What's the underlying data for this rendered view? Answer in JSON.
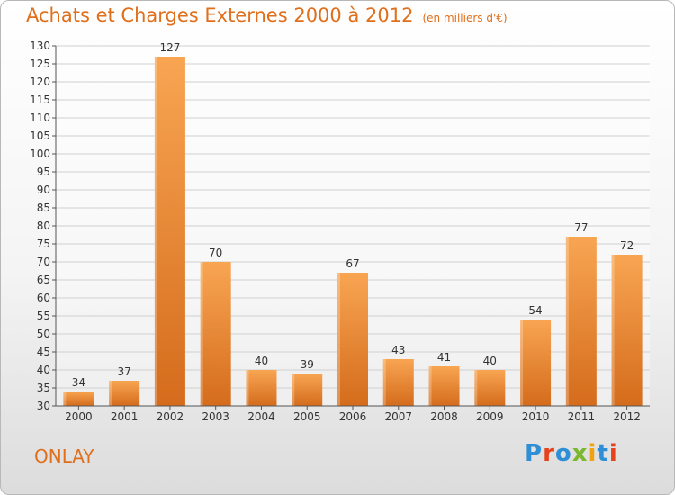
{
  "header": {
    "title": "Achats et Charges Externes 2000 à 2012",
    "subtitle": "(en milliers d'€)"
  },
  "footer": {
    "city": "ONLAY",
    "logo_text": "Proxiti",
    "logo_colors": [
      "#2f8fd6",
      "#e6431c",
      "#2f8fd6",
      "#7cb82f",
      "#f2a20f",
      "#2f8fd6",
      "#e6431c"
    ]
  },
  "colors": {
    "bar_light": "#f7a550",
    "bar_dark": "#d8701e",
    "text": "#e06f1c",
    "grid": "#d0d0d0"
  },
  "chart_data": {
    "type": "bar",
    "title": "Achats et Charges Externes 2000 à 2012",
    "subtitle": "(en milliers d'€)",
    "categories": [
      "2000",
      "2001",
      "2002",
      "2003",
      "2004",
      "2005",
      "2006",
      "2007",
      "2008",
      "2009",
      "2010",
      "2011",
      "2012"
    ],
    "values": [
      34,
      37,
      127,
      70,
      40,
      39,
      67,
      43,
      41,
      40,
      54,
      77,
      72
    ],
    "ylim": [
      30,
      130
    ],
    "yticks": [
      30,
      35,
      40,
      45,
      50,
      55,
      60,
      65,
      70,
      75,
      80,
      85,
      90,
      95,
      100,
      105,
      110,
      115,
      120,
      125,
      130
    ],
    "grid": true,
    "data_labels": true
  }
}
